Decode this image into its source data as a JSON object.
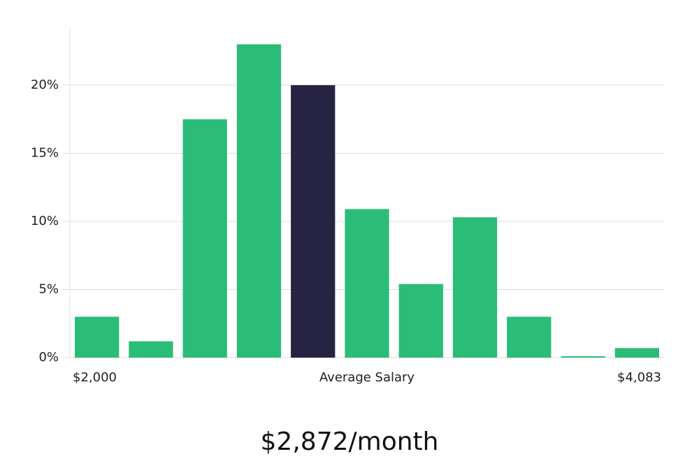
{
  "chart_data": {
    "type": "bar",
    "categories": [
      "$2,000",
      null,
      null,
      null,
      null,
      null,
      null,
      null,
      null,
      null,
      "$4,083"
    ],
    "values": [
      3.0,
      1.2,
      17.5,
      23.0,
      20.0,
      10.9,
      5.4,
      10.3,
      3.0,
      0.1,
      0.7
    ],
    "colors": [
      "#2bbd77",
      "#2bbd77",
      "#2bbd77",
      "#2bbd77",
      "#272343",
      "#2bbd77",
      "#2bbd77",
      "#2bbd77",
      "#2bbd77",
      "#2bbd77",
      "#2bbd77"
    ],
    "x_label": "Average Salary",
    "caption": "$2,872/month",
    "ylim": [
      0,
      24.2
    ],
    "yticks": [
      {
        "value": 0,
        "label": "0%"
      },
      {
        "value": 5,
        "label": "5%"
      },
      {
        "value": 10,
        "label": "10%"
      },
      {
        "value": 15,
        "label": "15%"
      },
      {
        "value": 20,
        "label": "20%"
      }
    ],
    "grid": true
  }
}
